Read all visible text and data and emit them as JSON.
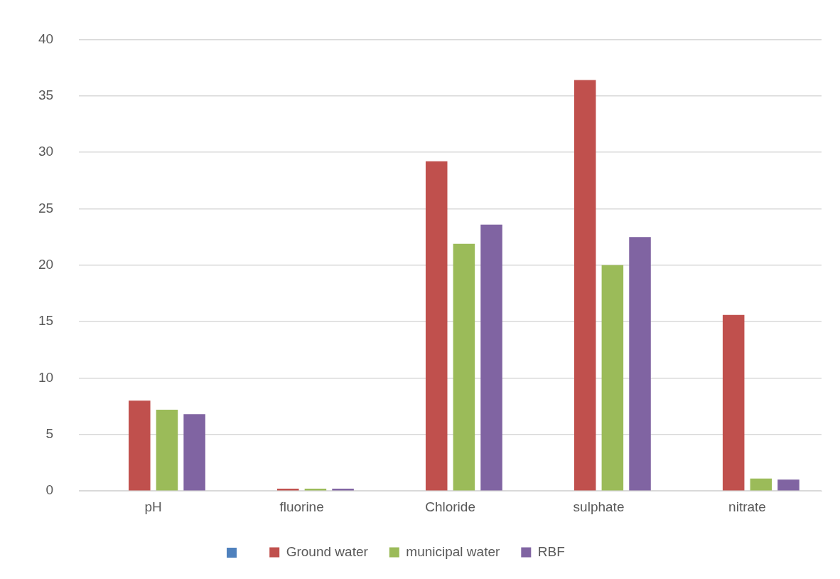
{
  "chart_data": {
    "type": "bar",
    "categories": [
      "pH",
      "fluorine",
      "Chloride",
      "sulphate",
      "nitrate"
    ],
    "series": [
      {
        "color": "#4f81bd",
        "values": [
          null,
          null,
          null,
          null,
          null
        ]
      },
      {
        "name": "Ground water",
        "color": "#c0504d",
        "values": [
          8.0,
          0.2,
          29.2,
          36.4,
          15.6
        ]
      },
      {
        "name": "municipal water",
        "color": "#9bbb59",
        "values": [
          7.2,
          0.2,
          21.9,
          20.0,
          1.1
        ]
      },
      {
        "name": "RBF",
        "color": "#8064a2",
        "values": [
          6.8,
          0.2,
          23.6,
          22.5,
          1.0
        ]
      }
    ],
    "ylim": [
      0,
      40
    ],
    "yticks": [
      0,
      5,
      10,
      15,
      20,
      25,
      30,
      35,
      40
    ],
    "grid": "y",
    "legend": "bottom"
  }
}
